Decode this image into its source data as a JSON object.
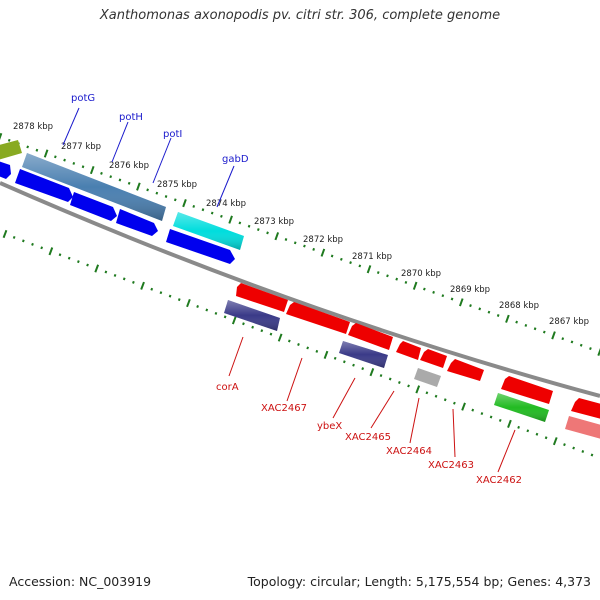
{
  "title": "Xanthomonas axonopodis pv. citri str. 306, complete genome",
  "footer": {
    "accession": "Accession: NC_003919",
    "summary": "Topology: circular; Length: 5,175,554 bp; Genes: 4,373"
  },
  "colors": {
    "backbone": "#8a8a8a",
    "tick": "#1f7a1f",
    "forward_label": "#1a1acc",
    "reverse_label": "#cc1111"
  },
  "kbp_labels": [
    "2878 kbp",
    "2877 kbp",
    "2876 kbp",
    "2875 kbp",
    "2874 kbp",
    "2873 kbp",
    "2872 kbp",
    "2871 kbp",
    "2870 kbp",
    "2869 kbp",
    "2868 kbp",
    "2867 kbp"
  ],
  "forward_gene_labels": [
    "potG",
    "potH",
    "potI",
    "gabD"
  ],
  "reverse_gene_labels": [
    "corA",
    "XAC2467",
    "ybeX",
    "XAC2465",
    "XAC2464",
    "XAC2463",
    "XAC2462"
  ],
  "gene_colors": {
    "blue": "#0000ee",
    "steel": "#4a7fb0",
    "cyan": "#00dddd",
    "olive": "#88aa22",
    "red": "#ee0000",
    "slate": "#3a3a88",
    "gray": "#aaaaaa",
    "green": "#22bb22",
    "pink": "#ee7777"
  }
}
